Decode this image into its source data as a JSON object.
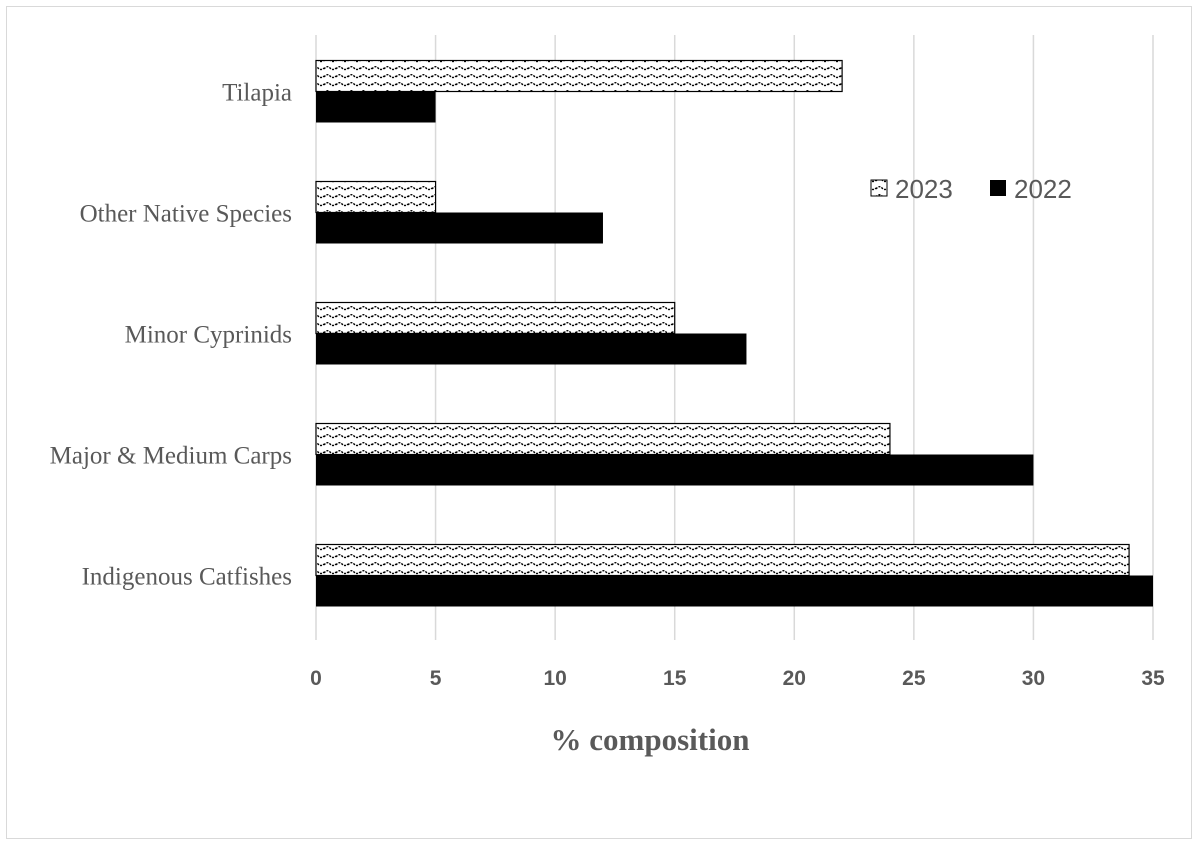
{
  "chart_data": {
    "type": "bar",
    "orientation": "horizontal",
    "categories": [
      "Indigenous Catfishes",
      "Major & Medium Carps",
      "Minor Cyprinids",
      "Other Native Species",
      "Tilapia"
    ],
    "series": [
      {
        "name": "2023",
        "values": [
          34,
          24,
          15,
          5,
          22
        ],
        "fill": "wave-pattern"
      },
      {
        "name": "2022",
        "values": [
          35,
          30,
          18,
          12,
          5
        ],
        "color": "#000000"
      }
    ],
    "title": "",
    "xlabel": "% composition",
    "ylabel": "",
    "xlim": [
      0,
      35
    ],
    "xticks": [
      "0",
      "5",
      "10",
      "15",
      "20",
      "25",
      "30",
      "35"
    ],
    "grid": "vertical",
    "legend": "top-right"
  }
}
